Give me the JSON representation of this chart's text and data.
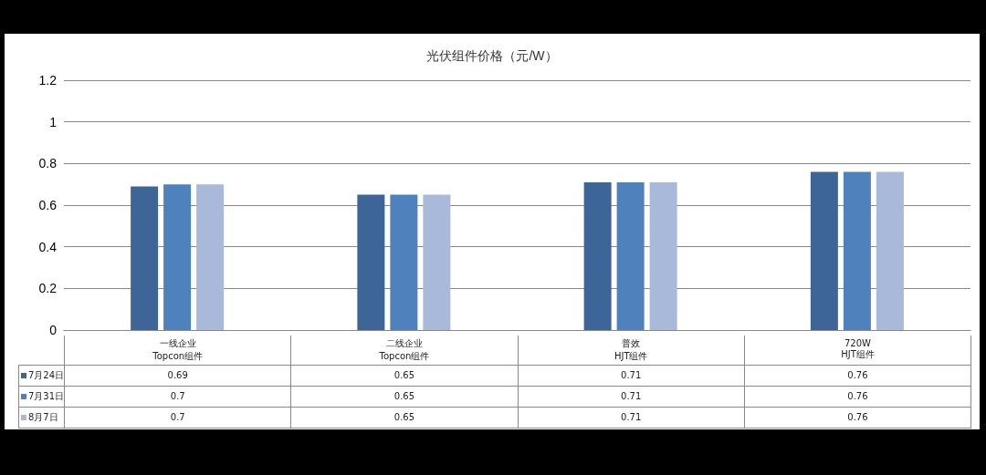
{
  "chart_data": {
    "type": "bar",
    "title": "光伏组件价格（元/W）",
    "categories": [
      "一线企业\nTopcon组件",
      "二线企业\nTopcon组件",
      "普效\nHJT组件",
      "720W\nHJT组件"
    ],
    "series": [
      {
        "name": "7月24日",
        "color": "#3d6598",
        "values": [
          0.69,
          0.65,
          0.71,
          0.76
        ]
      },
      {
        "name": "7月31日",
        "color": "#4f81bd",
        "values": [
          0.7,
          0.65,
          0.71,
          0.76
        ]
      },
      {
        "name": "8月7日",
        "color": "#a9b9d9",
        "values": [
          0.7,
          0.65,
          0.71,
          0.76
        ]
      }
    ],
    "ylim": [
      0,
      1.2
    ],
    "yticks": [
      0,
      0.2,
      0.4,
      0.6,
      0.8,
      1,
      1.2
    ],
    "grid": "y",
    "legend": "bottom left",
    "data_labels": true
  }
}
